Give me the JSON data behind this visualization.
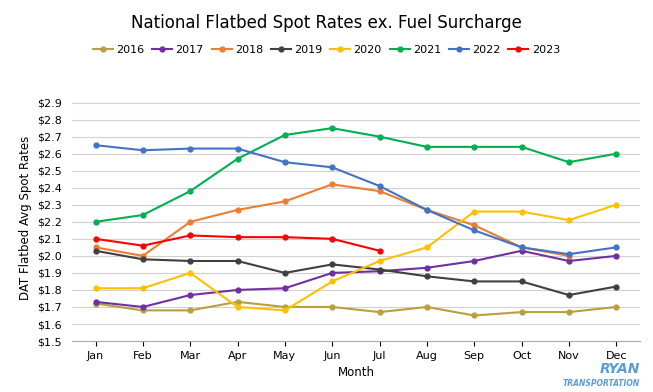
{
  "title": "National Flatbed Spot Rates ex. Fuel Surcharge",
  "xlabel": "Month",
  "ylabel": "DAT Flatbed Avg Spot Rates",
  "months": [
    "Jan",
    "Feb",
    "Mar",
    "Apr",
    "May",
    "Jun",
    "Jul",
    "Aug",
    "Sep",
    "Oct",
    "Nov",
    "Dec"
  ],
  "ylim": [
    1.5,
    2.95
  ],
  "yticks": [
    1.5,
    1.6,
    1.7,
    1.8,
    1.9,
    2.0,
    2.1,
    2.2,
    2.3,
    2.4,
    2.5,
    2.6,
    2.7,
    2.8,
    2.9
  ],
  "series": [
    {
      "label": "2016",
      "color": "#b8a040",
      "marker": "o",
      "markersize": 3.5,
      "linewidth": 1.5,
      "data": [
        1.72,
        1.68,
        1.68,
        1.73,
        1.7,
        1.7,
        1.67,
        1.7,
        1.65,
        1.67,
        1.67,
        1.7
      ]
    },
    {
      "label": "2017",
      "color": "#7030a0",
      "marker": "o",
      "markersize": 3.5,
      "linewidth": 1.5,
      "data": [
        1.73,
        1.7,
        1.77,
        1.8,
        1.81,
        1.9,
        1.91,
        1.93,
        1.97,
        2.03,
        1.97,
        2.0
      ]
    },
    {
      "label": "2018",
      "color": "#ed7d31",
      "marker": "o",
      "markersize": 3.5,
      "linewidth": 1.5,
      "data": [
        2.05,
        2.0,
        2.2,
        2.27,
        2.32,
        2.42,
        2.38,
        2.27,
        2.18,
        2.05,
        2.0,
        null
      ]
    },
    {
      "label": "2019",
      "color": "#404040",
      "marker": "o",
      "markersize": 3.5,
      "linewidth": 1.5,
      "data": [
        2.03,
        1.98,
        1.97,
        1.97,
        1.9,
        1.95,
        1.92,
        1.88,
        1.85,
        1.85,
        1.77,
        1.82
      ]
    },
    {
      "label": "2020",
      "color": "#ffc000",
      "marker": "o",
      "markersize": 3.5,
      "linewidth": 1.5,
      "data": [
        1.81,
        1.81,
        1.9,
        1.7,
        1.68,
        1.85,
        1.97,
        2.05,
        2.26,
        2.26,
        2.21,
        2.3
      ]
    },
    {
      "label": "2021",
      "color": "#00b050",
      "marker": "o",
      "markersize": 3.5,
      "linewidth": 1.5,
      "data": [
        2.2,
        2.24,
        2.38,
        2.57,
        2.71,
        2.75,
        2.7,
        2.64,
        2.64,
        2.64,
        2.55,
        2.6
      ]
    },
    {
      "label": "2022",
      "color": "#4472c4",
      "marker": "o",
      "markersize": 3.5,
      "linewidth": 1.5,
      "data": [
        2.65,
        2.62,
        2.63,
        2.63,
        2.55,
        2.52,
        2.41,
        2.27,
        2.15,
        2.05,
        2.01,
        2.05
      ]
    },
    {
      "label": "2023",
      "color": "#ff0000",
      "marker": "o",
      "markersize": 3.5,
      "linewidth": 1.5,
      "data": [
        2.1,
        2.06,
        2.12,
        2.11,
        2.11,
        2.1,
        2.03,
        null,
        null,
        null,
        null,
        null
      ]
    }
  ],
  "background_color": "#ffffff",
  "grid_color": "#d0d0d0",
  "title_fontsize": 12,
  "legend_fontsize": 8,
  "axis_label_fontsize": 8.5,
  "tick_fontsize": 8
}
